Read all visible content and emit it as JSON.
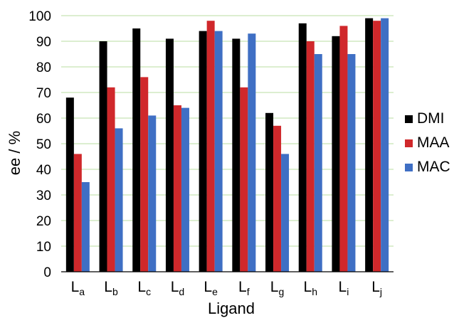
{
  "chart_data": {
    "type": "bar",
    "categories": [
      {
        "main": "L",
        "sub": "a"
      },
      {
        "main": "L",
        "sub": "b"
      },
      {
        "main": "L",
        "sub": "c"
      },
      {
        "main": "L",
        "sub": "d"
      },
      {
        "main": "L",
        "sub": "e"
      },
      {
        "main": "L",
        "sub": "f"
      },
      {
        "main": "L",
        "sub": "g"
      },
      {
        "main": "L",
        "sub": "h"
      },
      {
        "main": "L",
        "sub": "i"
      },
      {
        "main": "L",
        "sub": "j"
      }
    ],
    "series": [
      {
        "name": "DMI",
        "color": "#000000",
        "values": [
          68,
          90,
          95,
          91,
          94,
          91,
          62,
          97,
          92,
          99
        ]
      },
      {
        "name": "MAA",
        "color": "#d0282b",
        "values": [
          46,
          72,
          76,
          65,
          98,
          72,
          57,
          90,
          96,
          98
        ]
      },
      {
        "name": "MAC",
        "color": "#3f6fc4",
        "values": [
          35,
          56,
          61,
          64,
          94,
          93,
          46,
          85,
          85,
          99
        ]
      }
    ],
    "title": "",
    "xlabel": "Ligand",
    "ylabel": "ee / %",
    "ylim": [
      0,
      100
    ],
    "yticks": [
      0,
      10,
      20,
      30,
      40,
      50,
      60,
      70,
      80,
      90,
      100
    ],
    "grid": "horizontal",
    "grid_color": "#c7e3b4",
    "legend_position": "right"
  }
}
